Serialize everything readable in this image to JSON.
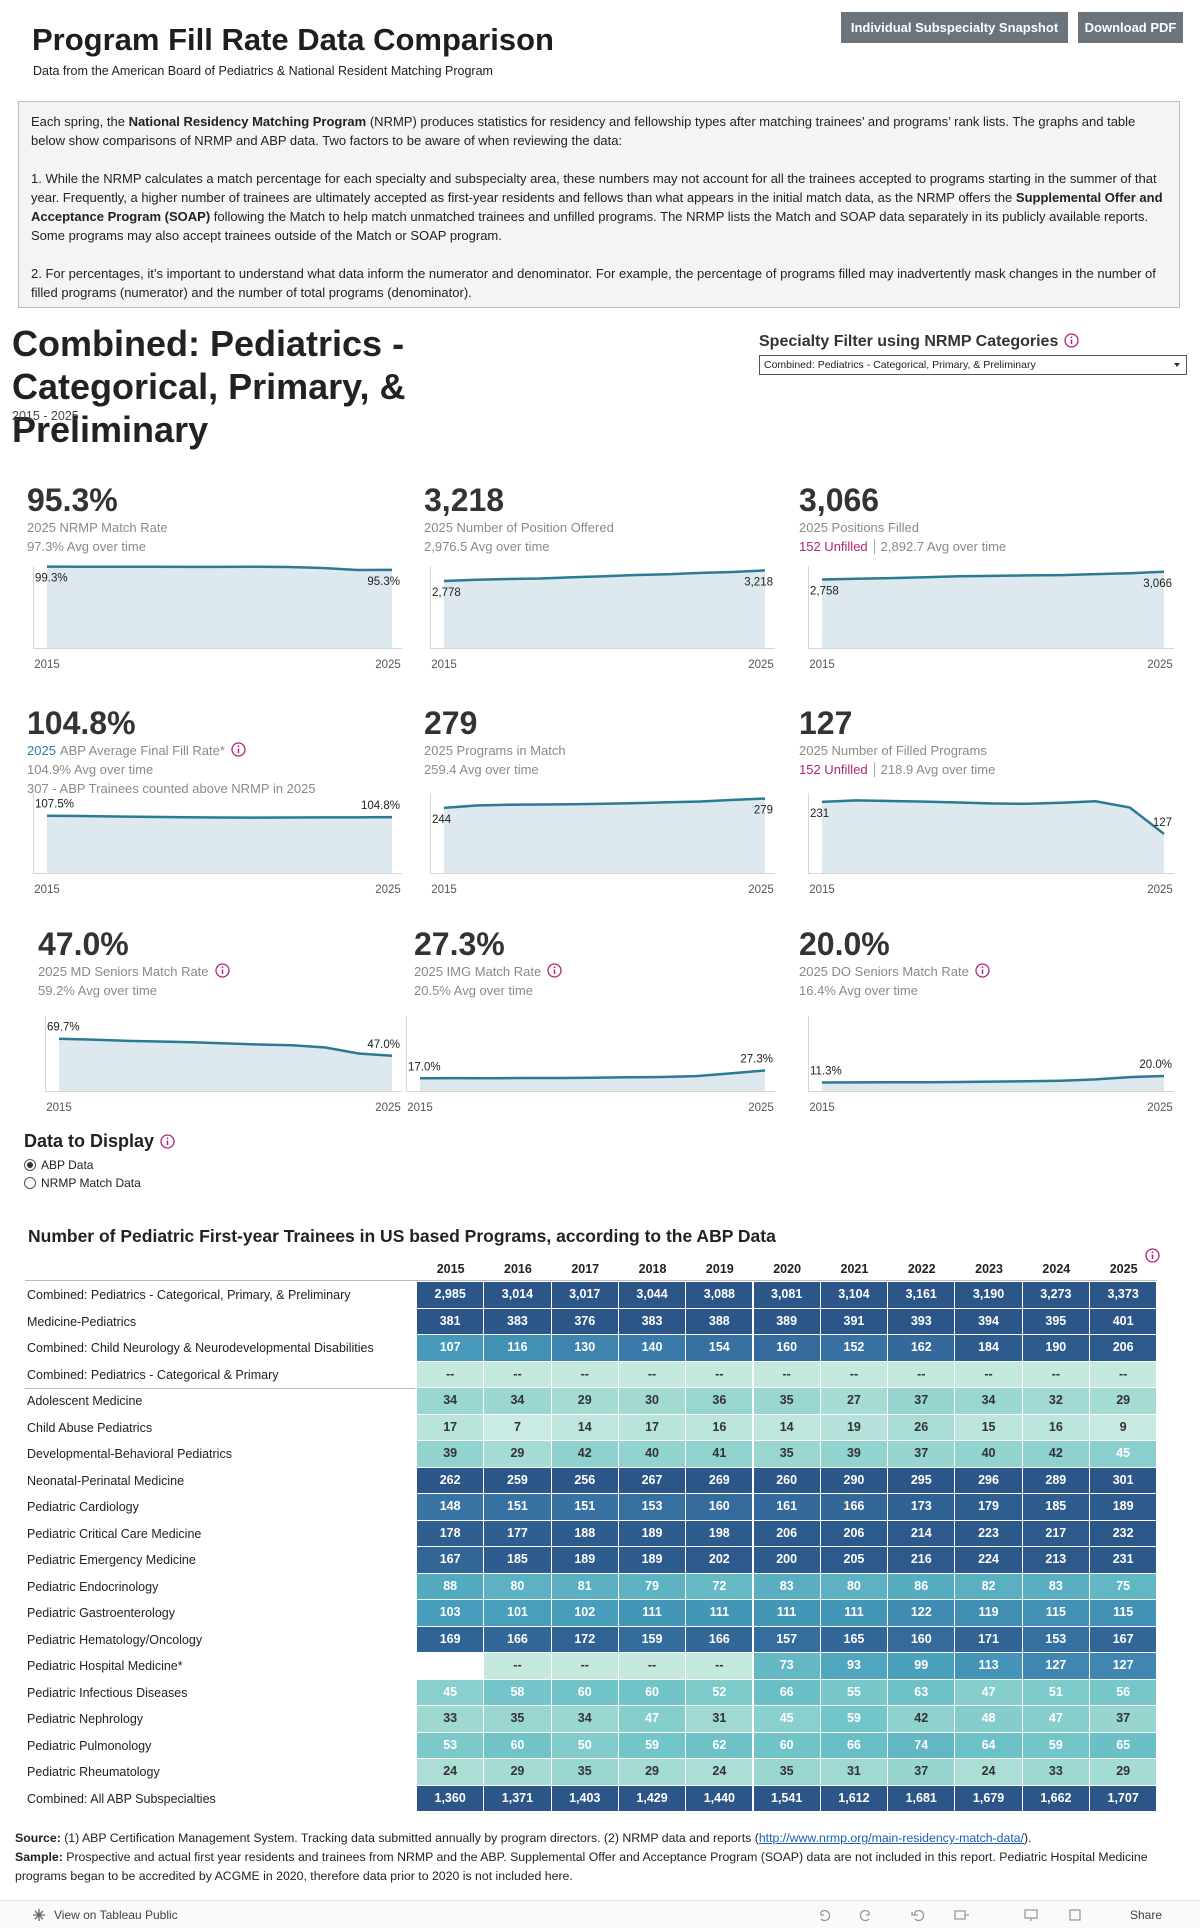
{
  "header": {
    "title": "Program Fill Rate Data Comparison",
    "subtitle": "Data from the American Board of Pediatrics & National Resident Matching Program",
    "buttons": [
      "Individual Subspecialty Snapshot",
      "Download PDF"
    ]
  },
  "intro": {
    "paragraphs": [
      [
        {
          "text": "Each spring, the "
        },
        {
          "text": "National Residency Matching Program",
          "bold": true
        },
        {
          "text": " (NRMP) produces statistics for residency and fellowship types after matching trainees’ and programs’ rank lists.   The graphs and table below show comparisons of NRMP and ABP data.  Two factors to be aware of when reviewing the data:"
        }
      ],
      [
        {
          "text": "1. While the NRMP calculates a match percentage for each specialty and subspecialty area, these numbers may not account for all the trainees accepted to programs starting in the summer of that year.  Frequently, a higher number of trainees are ultimately accepted as first-year residents and fellows than what appears in the initial match data, as the NRMP offers the "
        },
        {
          "text": "Supplemental Offer and Acceptance Program (SOAP)",
          "bold": true
        },
        {
          "text": "  following the Match to help match unmatched trainees and unfilled programs. The NRMP lists the Match and SOAP data separately in its publicly available reports. Some programs may also accept trainees outside of the Match or SOAP program."
        }
      ],
      [
        {
          "text": "2. For percentages, it’s important to understand what data inform the numerator and denominator. For example, the percentage of programs filled may inadvertently mask changes in the number of filled programs (numerator) and the number of total programs (denominator)."
        }
      ]
    ]
  },
  "section": {
    "title": "Combined: Pediatrics - Categorical, Primary, & Preliminary",
    "date_range": "2015 - 2025",
    "filter_label": "Specialty Filter using NRMP Categories",
    "filter_value": "Combined: Pediatrics - Categorical, Primary, & Preliminary"
  },
  "kpi_years": [
    "2015",
    "2025"
  ],
  "cards": [
    {
      "value_label": "95.3%",
      "label": "2025 NRMP Match Rate",
      "avg": "97.3% Avg over time",
      "spark": {
        "values": [
          99.3,
          99.2,
          99.0,
          99.0,
          98.9,
          98.9,
          99.0,
          98.8,
          97.6,
          95.1,
          95.3
        ],
        "ylim": [
          0,
          100
        ],
        "start_label": "99.3%",
        "end_label": "95.3%"
      }
    },
    {
      "value_label": "3,218",
      "label": "2025 Number of Position Offered",
      "avg": "2,976.5 Avg over time",
      "spark": {
        "values": [
          2778,
          2826,
          2860,
          2883,
          2936,
          2979,
          3028,
          3062,
          3115,
          3153,
          3218
        ],
        "ylim": [
          0,
          3400
        ],
        "start_label": "2,778",
        "end_label": "3,218"
      }
    },
    {
      "value_label": "3,066",
      "label": "2025 Positions Filled",
      "unfilled": "152 Unfilled",
      "avg": "2,892.7 Avg over time",
      "spark": {
        "values": [
          2758,
          2790,
          2815,
          2850,
          2890,
          2900,
          2920,
          2935,
          2975,
          3010,
          3066
        ],
        "ylim": [
          0,
          3300
        ],
        "start_label": "2,758",
        "end_label": "3,066"
      }
    },
    {
      "value_label": "104.8%",
      "label_prefix": "2025",
      "label": "ABP Average Final Fill Rate*",
      "info": true,
      "avg": "104.9% Avg over time",
      "extra": "307 - ABP Trainees counted above NRMP in 2025",
      "spark": {
        "values": [
          107.5,
          106.8,
          106.0,
          105.2,
          104.5,
          104.0,
          103.8,
          104.1,
          104.3,
          104.3,
          104.8
        ],
        "ylim": [
          0,
          150
        ],
        "start_label": "107.5%",
        "end_label": "104.8%"
      }
    },
    {
      "value_label": "279",
      "label": "2025 Programs in Match",
      "avg": "259.4 Avg over time",
      "spark": {
        "values": [
          244,
          253,
          256,
          257,
          258,
          260,
          262,
          265,
          268,
          274,
          279
        ],
        "ylim": [
          0,
          300
        ],
        "start_label": "244",
        "end_label": "279"
      }
    },
    {
      "value_label": "127",
      "label": "2025 Number of Filled Programs",
      "unfilled": "152 Unfilled",
      "avg": "218.9 Avg over time",
      "spark": {
        "values": [
          231,
          236,
          234,
          232,
          229,
          226,
          225,
          228,
          233,
          213,
          127
        ],
        "ylim": [
          0,
          260
        ],
        "start_label": "231",
        "end_label": "127"
      }
    },
    {
      "value_label": "47.0%",
      "label": "2025 MD Seniors Match Rate",
      "info": true,
      "avg": "59.2% Avg over time",
      "spark": {
        "values": [
          69.7,
          68.5,
          67.0,
          66.0,
          65.0,
          63.5,
          62.0,
          61.0,
          58.0,
          50.0,
          47.0
        ],
        "ylim": [
          0,
          100
        ],
        "start_label": "69.7%",
        "end_label": "47.0%"
      }
    },
    {
      "value_label": "27.3%",
      "label": "2025 IMG Match Rate",
      "info": true,
      "avg": "20.5% Avg over time",
      "spark": {
        "values": [
          17.0,
          17.2,
          17.1,
          17.4,
          17.3,
          17.8,
          18.2,
          18.7,
          19.9,
          23.5,
          27.3
        ],
        "ylim": [
          0,
          100
        ],
        "start_label": "17.0%",
        "end_label": "27.3%"
      }
    },
    {
      "value_label": "20.0%",
      "label": "2025 DO Seniors Match Rate",
      "info": true,
      "avg": "16.4% Avg over time",
      "spark": {
        "values": [
          11.3,
          11.5,
          11.6,
          11.8,
          12.0,
          12.5,
          13.0,
          13.8,
          15.5,
          18.5,
          20.0
        ],
        "ylim": [
          0,
          100
        ],
        "start_label": "11.3%",
        "end_label": "20.0%"
      }
    }
  ],
  "display": {
    "title": "Data to Display",
    "options": [
      {
        "label": "ABP Data",
        "selected": true
      },
      {
        "label": "NRMP Match Data",
        "selected": false
      }
    ]
  },
  "table": {
    "title": "Number of Pediatric First-year Trainees in US based Programs, according to the ABP Data",
    "columns": [
      "2015",
      "2016",
      "2017",
      "2018",
      "2019",
      "2020",
      "2021",
      "2022",
      "2023",
      "2024",
      "2025"
    ],
    "rows": [
      {
        "label": "Combined: Pediatrics - Categorical, Primary, & Preliminary",
        "cells": [
          "2,985",
          "3,014",
          "3,017",
          "3,044",
          "3,088",
          "3,081",
          "3,104",
          "3,161",
          "3,190",
          "3,273",
          "3,373"
        ]
      },
      {
        "label": "Medicine-Pediatrics",
        "cells": [
          "381",
          "383",
          "376",
          "383",
          "388",
          "389",
          "391",
          "393",
          "394",
          "395",
          "401"
        ]
      },
      {
        "label": "Combined: Child Neurology & Neurodevelopmental Disabilities",
        "cells": [
          "107",
          "116",
          "130",
          "140",
          "154",
          "160",
          "152",
          "162",
          "184",
          "190",
          "206"
        ]
      },
      {
        "label": "Combined: Pediatrics - Categorical & Primary",
        "cells": [
          "--",
          "--",
          "--",
          "--",
          "--",
          "--",
          "--",
          "--",
          "--",
          "--",
          "--"
        ]
      },
      {
        "label": "Adolescent Medicine",
        "cells": [
          "34",
          "34",
          "29",
          "30",
          "36",
          "35",
          "27",
          "37",
          "34",
          "32",
          "29"
        ]
      },
      {
        "label": "Child Abuse Pediatrics",
        "cells": [
          "17",
          "7",
          "14",
          "17",
          "16",
          "14",
          "19",
          "26",
          "15",
          "16",
          "9"
        ]
      },
      {
        "label": "Developmental-Behavioral Pediatrics",
        "cells": [
          "39",
          "29",
          "42",
          "40",
          "41",
          "35",
          "39",
          "37",
          "40",
          "42",
          "45"
        ]
      },
      {
        "label": "Neonatal-Perinatal Medicine",
        "cells": [
          "262",
          "259",
          "256",
          "267",
          "269",
          "260",
          "290",
          "295",
          "296",
          "289",
          "301"
        ]
      },
      {
        "label": "Pediatric Cardiology",
        "cells": [
          "148",
          "151",
          "151",
          "153",
          "160",
          "161",
          "166",
          "173",
          "179",
          "185",
          "189"
        ]
      },
      {
        "label": "Pediatric Critical Care Medicine",
        "cells": [
          "178",
          "177",
          "188",
          "189",
          "198",
          "206",
          "206",
          "214",
          "223",
          "217",
          "232"
        ]
      },
      {
        "label": "Pediatric Emergency Medicine",
        "cells": [
          "167",
          "185",
          "189",
          "189",
          "202",
          "200",
          "205",
          "216",
          "224",
          "213",
          "231"
        ]
      },
      {
        "label": "Pediatric Endocrinology",
        "cells": [
          "88",
          "80",
          "81",
          "79",
          "72",
          "83",
          "80",
          "86",
          "82",
          "83",
          "75"
        ]
      },
      {
        "label": "Pediatric Gastroenterology",
        "cells": [
          "103",
          "101",
          "102",
          "111",
          "111",
          "111",
          "111",
          "122",
          "119",
          "115",
          "115"
        ]
      },
      {
        "label": "Pediatric Hematology/Oncology",
        "cells": [
          "169",
          "166",
          "172",
          "159",
          "166",
          "157",
          "165",
          "160",
          "171",
          "153",
          "167"
        ]
      },
      {
        "label": "Pediatric Hospital Medicine*",
        "cells": [
          null,
          "--",
          "--",
          "--",
          "--",
          "73",
          "93",
          "99",
          "113",
          "127",
          "127"
        ]
      },
      {
        "label": "Pediatric Infectious Diseases",
        "cells": [
          "45",
          "58",
          "60",
          "60",
          "52",
          "66",
          "55",
          "63",
          "47",
          "51",
          "56"
        ]
      },
      {
        "label": "Pediatric Nephrology",
        "cells": [
          "33",
          "35",
          "34",
          "47",
          "31",
          "45",
          "59",
          "42",
          "48",
          "47",
          "37"
        ]
      },
      {
        "label": "Pediatric Pulmonology",
        "cells": [
          "53",
          "60",
          "50",
          "59",
          "62",
          "60",
          "66",
          "74",
          "64",
          "59",
          "65"
        ]
      },
      {
        "label": "Pediatric Rheumatology",
        "cells": [
          "24",
          "29",
          "35",
          "29",
          "24",
          "35",
          "31",
          "37",
          "24",
          "33",
          "29"
        ]
      },
      {
        "label": "Combined: All ABP Subspecialties",
        "cells": [
          "1,360",
          "1,371",
          "1,403",
          "1,429",
          "1,440",
          "1,541",
          "1,612",
          "1,681",
          "1,679",
          "1,662",
          "1,707"
        ]
      }
    ]
  },
  "footer": {
    "lines": [
      [
        {
          "text": "Source:",
          "bold": true
        },
        {
          "text": " (1) ABP Certification Management System. Tracking data submitted annually by program directors.  (2) NRMP data and reports ("
        },
        {
          "text": "http://www.nrmp.org/main-residency-match-data/",
          "link": true
        },
        {
          "text": ")."
        }
      ],
      [
        {
          "text": "Sample:",
          "bold": true
        },
        {
          "text": " Prospective and actual first year residents and trainees from NRMP and the ABP.  Supplemental Offer and Acceptance Program (SOAP) data are not included in this report.  Pediatric Hospital Medicine programs began to be accredited by ACGME in 2020, therefore data prior to 2020 is not included here."
        }
      ]
    ]
  },
  "toolbar": {
    "view": "View on Tableau Public",
    "share": "Share"
  }
}
